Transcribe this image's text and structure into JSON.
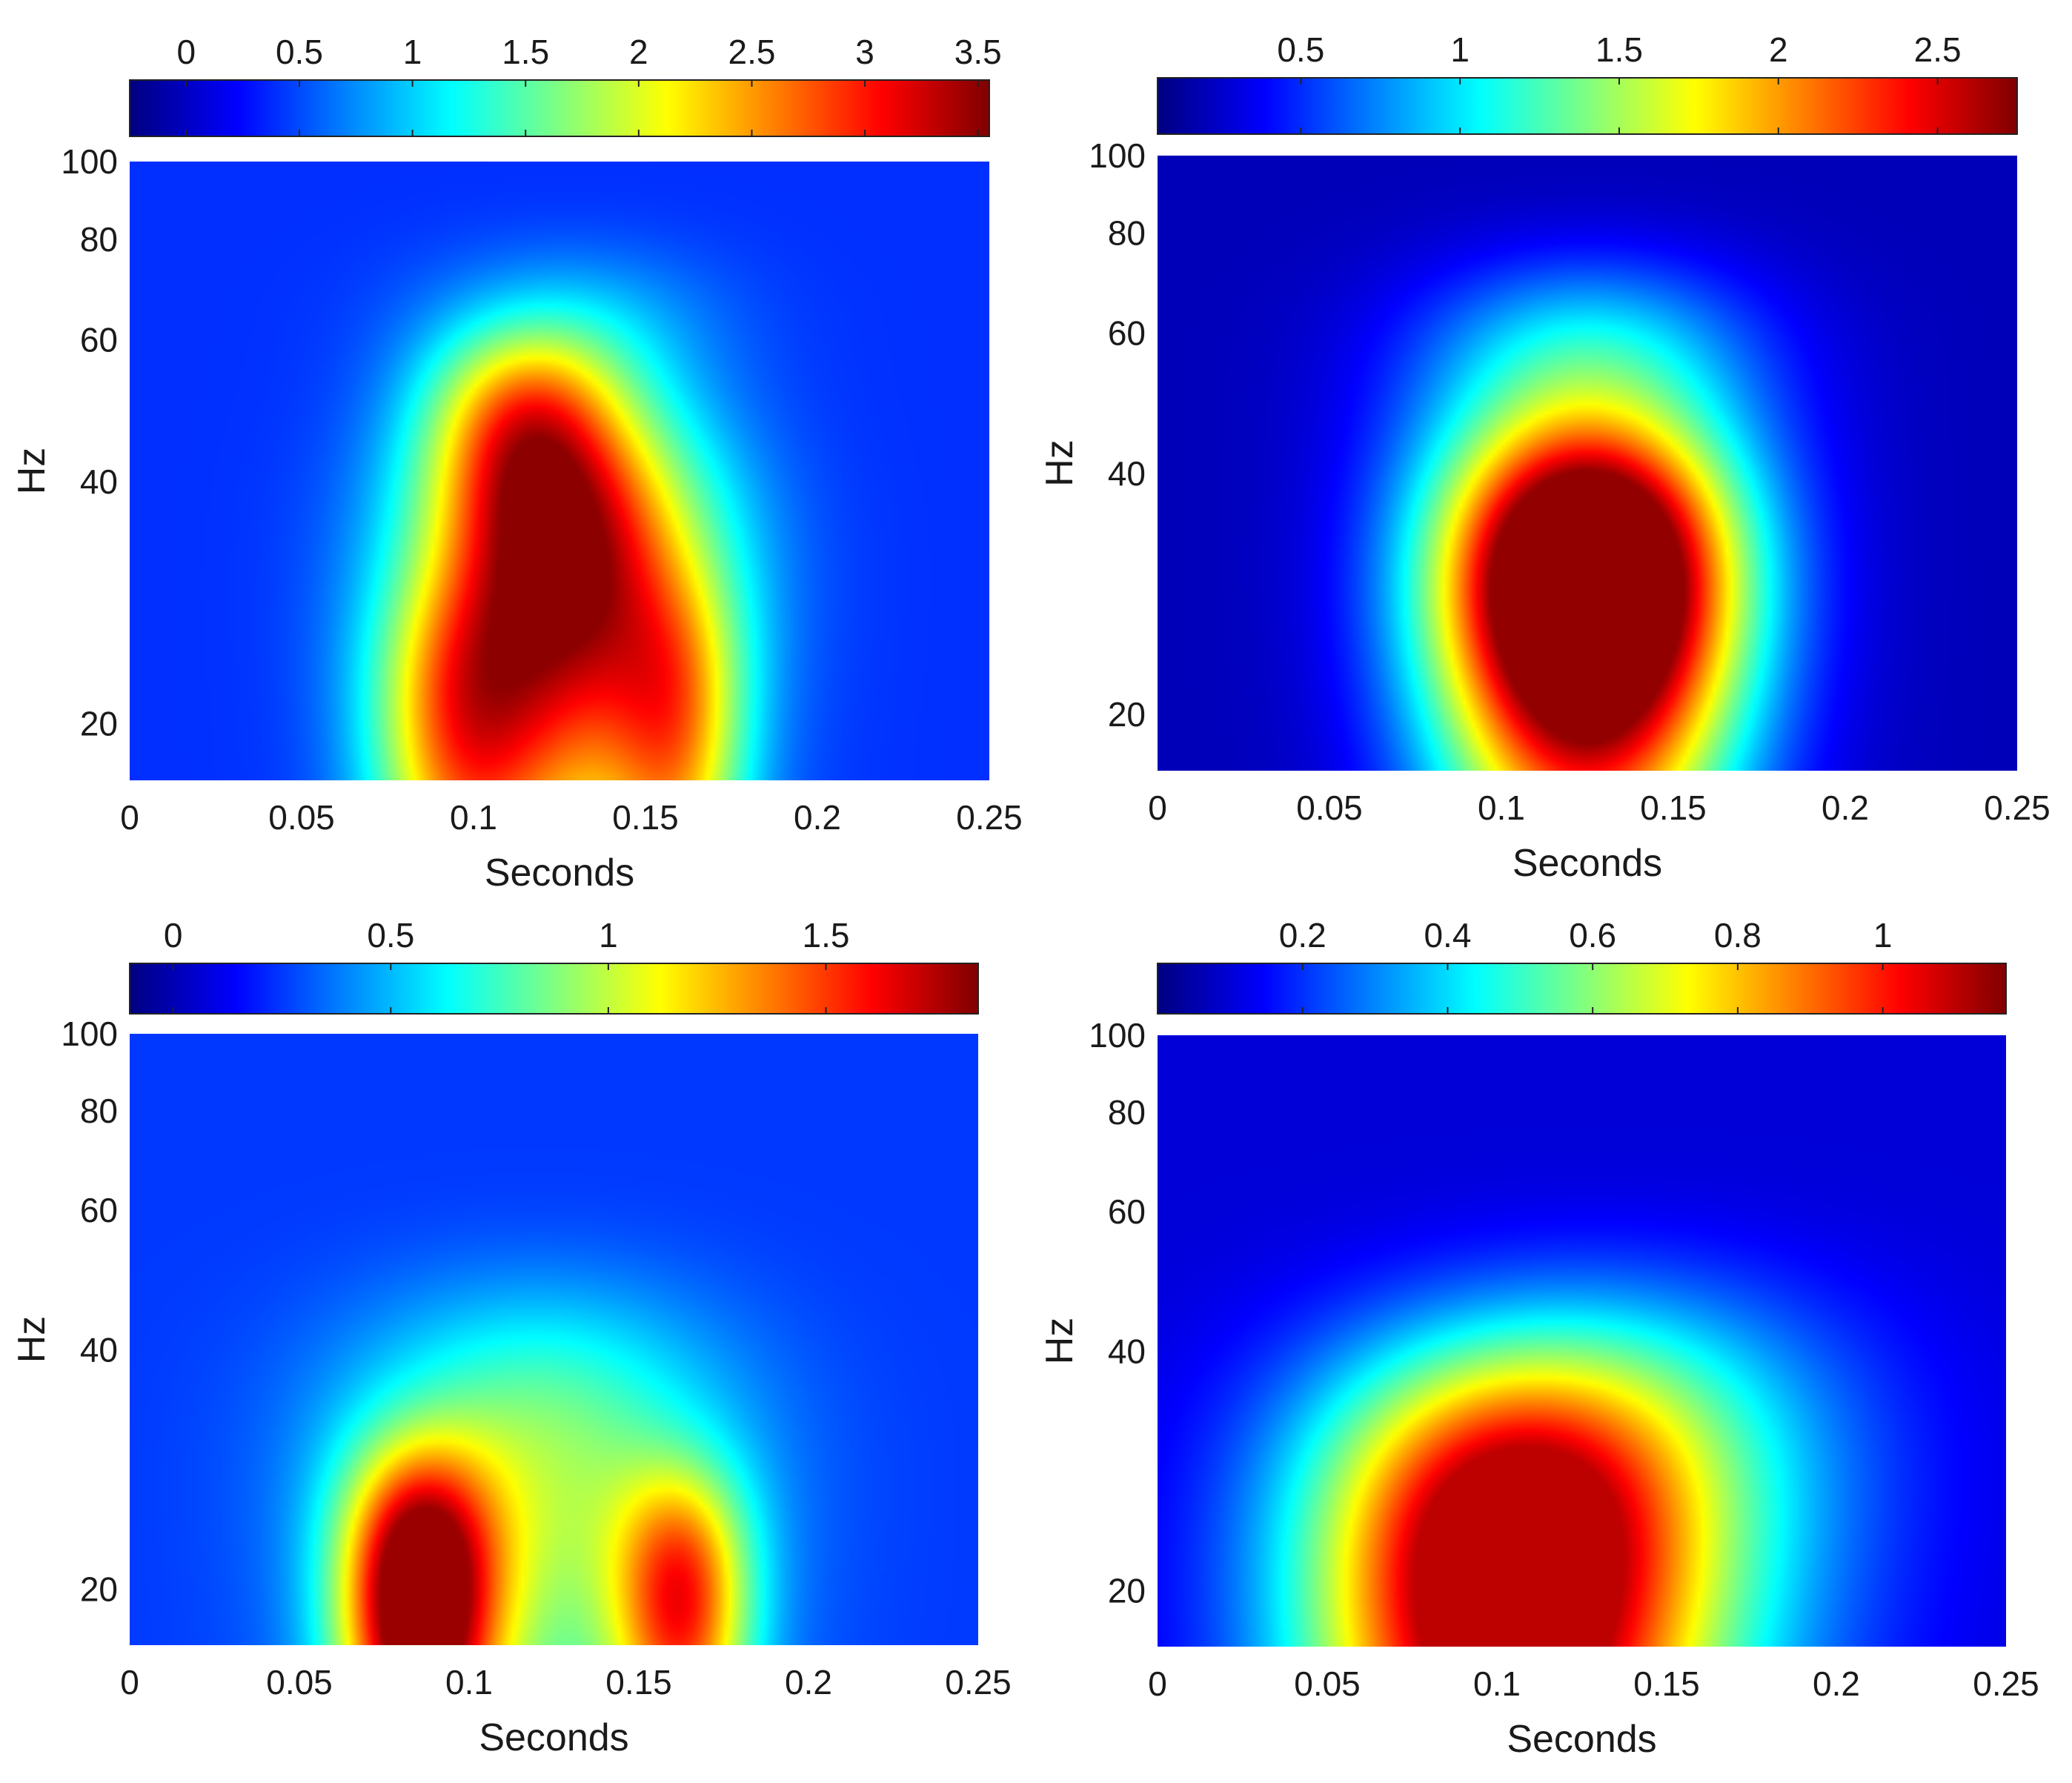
{
  "figure": {
    "panel_count": 4
  },
  "chart_data": [
    {
      "type": "heatmap",
      "title": "",
      "xlabel": "Seconds",
      "ylabel": "Hz",
      "xlim": [
        0,
        0.25
      ],
      "ylim": [
        17,
        100
      ],
      "xticks": [
        0,
        0.05,
        0.1,
        0.15,
        0.2,
        0.25
      ],
      "xtick_labels": [
        "0",
        "0.05",
        "0.1",
        "0.15",
        "0.2",
        "0.25"
      ],
      "yticks": [
        20,
        40,
        60,
        80,
        100
      ],
      "ytick_labels": [
        "20",
        "40",
        "60",
        "80",
        "100"
      ],
      "colorbar": {
        "position": "top",
        "colormap": "jet",
        "range": [
          -0.25,
          3.55
        ],
        "ticks": [
          0,
          0.5,
          1,
          1.5,
          2,
          2.5,
          3,
          3.5
        ],
        "tick_labels": [
          "0",
          "0.5",
          "1",
          "1.5",
          "2",
          "2.5",
          "3",
          "3.5"
        ]
      },
      "background_value": 0.4,
      "blobs": [
        {
          "t": 0.127,
          "f": 30,
          "amp": 3.0,
          "st": 0.03,
          "sf": 12
        },
        {
          "t": 0.115,
          "f": 47,
          "amp": 1.6,
          "st": 0.02,
          "sf": 10
        },
        {
          "t": 0.095,
          "f": 19,
          "amp": 1.5,
          "st": 0.018,
          "sf": 7
        },
        {
          "t": 0.16,
          "f": 19,
          "amp": 1.3,
          "st": 0.014,
          "sf": 7
        },
        {
          "t": 0.128,
          "f": 60,
          "amp": 0.6,
          "st": 0.03,
          "sf": 12
        }
      ],
      "peak_value": 3.5
    },
    {
      "type": "heatmap",
      "title": "",
      "xlabel": "Seconds",
      "ylabel": "Hz",
      "xlim": [
        0,
        0.25
      ],
      "ylim": [
        17,
        100
      ],
      "xticks": [
        0,
        0.05,
        0.1,
        0.15,
        0.2,
        0.25
      ],
      "xtick_labels": [
        "0",
        "0.05",
        "0.1",
        "0.15",
        "0.2",
        "0.25"
      ],
      "yticks": [
        20,
        40,
        60,
        80,
        100
      ],
      "ytick_labels": [
        "20",
        "40",
        "60",
        "80",
        "100"
      ],
      "colorbar": {
        "position": "top",
        "colormap": "jet",
        "range": [
          0.05,
          2.75
        ],
        "ticks": [
          0.5,
          1,
          1.5,
          2,
          2.5
        ],
        "tick_labels": [
          "0.5",
          "1",
          "1.5",
          "2",
          "2.5"
        ]
      },
      "background_value": 0.2,
      "blobs": [
        {
          "t": 0.125,
          "f": 30,
          "amp": 2.5,
          "st": 0.03,
          "sf": 10
        },
        {
          "t": 0.125,
          "f": 22,
          "amp": 1.2,
          "st": 0.032,
          "sf": 9
        },
        {
          "t": 0.125,
          "f": 50,
          "amp": 1.1,
          "st": 0.035,
          "sf": 15
        }
      ],
      "peak_value": 2.7
    },
    {
      "type": "heatmap",
      "title": "",
      "xlabel": "Seconds",
      "ylabel": "Hz",
      "xlim": [
        0,
        0.25
      ],
      "ylim": [
        17,
        100
      ],
      "xticks": [
        0,
        0.05,
        0.1,
        0.15,
        0.2,
        0.25
      ],
      "xtick_labels": [
        "0",
        "0.05",
        "0.1",
        "0.15",
        "0.2",
        "0.25"
      ],
      "yticks": [
        20,
        40,
        60,
        80,
        100
      ],
      "ytick_labels": [
        "20",
        "40",
        "60",
        "80",
        "100"
      ],
      "colorbar": {
        "position": "top",
        "colormap": "jet",
        "range": [
          -0.1,
          1.85
        ],
        "ticks": [
          0,
          0.5,
          1,
          1.5
        ],
        "tick_labels": [
          "0",
          "0.5",
          "1",
          "1.5"
        ]
      },
      "background_value": 0.25,
      "blobs": [
        {
          "t": 0.085,
          "f": 19,
          "amp": 1.6,
          "st": 0.016,
          "sf": 7
        },
        {
          "t": 0.163,
          "f": 19,
          "amp": 1.05,
          "st": 0.014,
          "sf": 6
        },
        {
          "t": 0.12,
          "f": 27,
          "amp": 0.7,
          "st": 0.04,
          "sf": 13
        }
      ],
      "peak_value": 1.8
    },
    {
      "type": "heatmap",
      "title": "",
      "xlabel": "Seconds",
      "ylabel": "Hz",
      "xlim": [
        0,
        0.25
      ],
      "ylim": [
        17,
        100
      ],
      "xticks": [
        0,
        0.05,
        0.1,
        0.15,
        0.2,
        0.25
      ],
      "xtick_labels": [
        "0",
        "0.05",
        "0.1",
        "0.15",
        "0.2",
        "0.25"
      ],
      "yticks": [
        20,
        40,
        60,
        80,
        100
      ],
      "ytick_labels": [
        "20",
        "40",
        "60",
        "80",
        "100"
      ],
      "colorbar": {
        "position": "top",
        "colormap": "jet",
        "range": [
          0.0,
          1.17
        ],
        "ticks": [
          0.2,
          0.4,
          0.6,
          0.8,
          1
        ],
        "tick_labels": [
          "0.2",
          "0.4",
          "0.6",
          "0.8",
          "1"
        ]
      },
      "background_value": 0.1,
      "blobs": [
        {
          "t": 0.1,
          "f": 19,
          "amp": 0.95,
          "st": 0.04,
          "sf": 12
        },
        {
          "t": 0.13,
          "f": 28,
          "amp": 0.45,
          "st": 0.05,
          "sf": 14
        }
      ],
      "peak_value": 1.1
    }
  ]
}
